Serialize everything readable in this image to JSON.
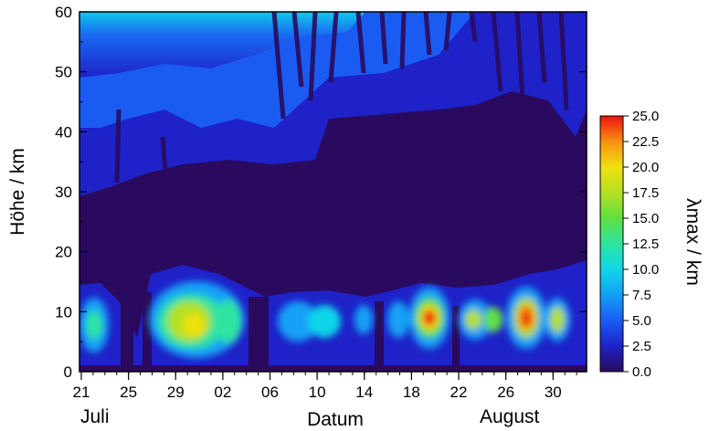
{
  "chart_data": {
    "type": "heatmap",
    "ylabel": "Höhe / km",
    "xlabel": "Datum",
    "month_labels": [
      "Juli",
      "August"
    ],
    "yticks": [
      "0",
      "10",
      "20",
      "30",
      "40",
      "50",
      "60"
    ],
    "xticks": [
      "21",
      "25",
      "29",
      "02",
      "06",
      "10",
      "14",
      "18",
      "22",
      "26",
      "30"
    ],
    "ylim": [
      0,
      60
    ],
    "colorbar": {
      "title": "λmax / km",
      "ticks": [
        "0.0",
        "2.5",
        "5.0",
        "7.5",
        "10.0",
        "12.5",
        "15.0",
        "17.5",
        "20.0",
        "22.5",
        "25.0"
      ],
      "range": [
        0,
        25
      ],
      "colors": [
        "#2a0a5e",
        "#1e22c8",
        "#1a5cf2",
        "#12a0f6",
        "#10d6e8",
        "#2ee4a0",
        "#60e040",
        "#b4e020",
        "#f0e010",
        "#f89010",
        "#f01010"
      ]
    },
    "hotspots": [
      {
        "date": "Juli 22",
        "height_km": 8,
        "value": 12
      },
      {
        "date": "Juli 29",
        "height_km": 8,
        "value": 17
      },
      {
        "date": "Juli 30",
        "height_km": 8,
        "value": 16
      },
      {
        "date": "August 01",
        "height_km": 8,
        "value": 10
      },
      {
        "date": "August 10",
        "height_km": 8,
        "value": 8
      },
      {
        "date": "August 18",
        "height_km": 9,
        "value": 24
      },
      {
        "date": "August 22",
        "height_km": 9,
        "value": 12
      },
      {
        "date": "August 24",
        "height_km": 9,
        "value": 15
      },
      {
        "date": "August 27",
        "height_km": 9,
        "value": 23
      },
      {
        "date": "August 29",
        "height_km": 9,
        "value": 14
      }
    ]
  }
}
